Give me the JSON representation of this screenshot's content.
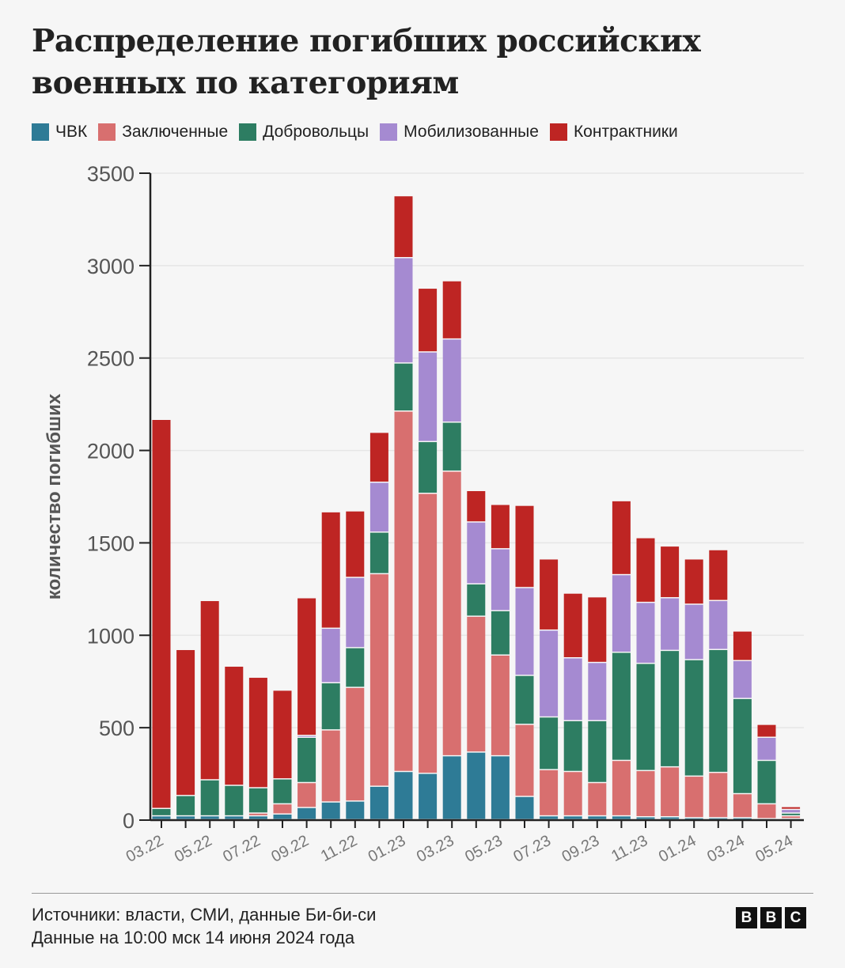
{
  "chart_data": {
    "type": "bar",
    "stacked": true,
    "title": "Распределение погибших российских военных по категориям",
    "ylabel": "количество погибших",
    "xlabel": "",
    "ylim": [
      0,
      3500
    ],
    "yticks": [
      "0",
      "500",
      "1000",
      "1500",
      "2000",
      "2500",
      "3000",
      "3500"
    ],
    "grid": true,
    "legend_position": "top-left",
    "categories": [
      "03.22",
      "04.22",
      "05.22",
      "06.22",
      "07.22",
      "08.22",
      "09.22",
      "10.22",
      "11.22",
      "12.22",
      "01.23",
      "02.23",
      "03.23",
      "04.23",
      "05.23",
      "06.23",
      "07.23",
      "08.23",
      "09.23",
      "10.23",
      "11.23",
      "12.23",
      "01.24",
      "02.24",
      "03.24",
      "04.24",
      "05.24"
    ],
    "xtick_labels": [
      "03.22",
      "05.22",
      "07.22",
      "09.22",
      "11.22",
      "01.23",
      "03.23",
      "05.23",
      "07.23",
      "09.23",
      "11.23",
      "01.24",
      "03.24",
      "05.24"
    ],
    "series": [
      {
        "name": "ЧВК",
        "color": "#2e7b96",
        "values": [
          20,
          20,
          20,
          20,
          20,
          30,
          65,
          95,
          100,
          180,
          260,
          250,
          345,
          365,
          345,
          125,
          20,
          20,
          20,
          20,
          15,
          15,
          10,
          10,
          10,
          5,
          5
        ]
      },
      {
        "name": "Заключенные",
        "color": "#d86f6f",
        "values": [
          0,
          0,
          0,
          0,
          15,
          55,
          135,
          390,
          615,
          1150,
          1950,
          1515,
          1540,
          735,
          545,
          390,
          250,
          240,
          180,
          300,
          250,
          270,
          225,
          245,
          130,
          80,
          15
        ]
      },
      {
        "name": "Добровольцы",
        "color": "#2d7d62",
        "values": [
          40,
          110,
          195,
          165,
          137,
          135,
          245,
          255,
          215,
          225,
          260,
          280,
          265,
          175,
          240,
          265,
          285,
          275,
          335,
          585,
          580,
          630,
          630,
          665,
          515,
          235,
          15
        ]
      },
      {
        "name": "Мобилизованные",
        "color": "#a58ad1",
        "values": [
          0,
          0,
          0,
          0,
          0,
          0,
          10,
          295,
          380,
          270,
          570,
          485,
          450,
          335,
          335,
          475,
          470,
          340,
          315,
          420,
          330,
          285,
          300,
          265,
          205,
          125,
          20
        ]
      },
      {
        "name": "Контрактники",
        "color": "#be2523",
        "values": [
          2105,
          790,
          970,
          645,
          598,
          480,
          745,
          630,
          360,
          270,
          335,
          345,
          315,
          170,
          240,
          445,
          385,
          350,
          355,
          400,
          350,
          280,
          245,
          275,
          160,
          70,
          15
        ]
      }
    ]
  },
  "footer": {
    "sources": "Источники: власти, СМИ, данные Би-би-си",
    "date": "Данные на 10:00 мск 14 июня 2024 года"
  },
  "logo": {
    "letters": [
      "B",
      "B",
      "C"
    ]
  }
}
